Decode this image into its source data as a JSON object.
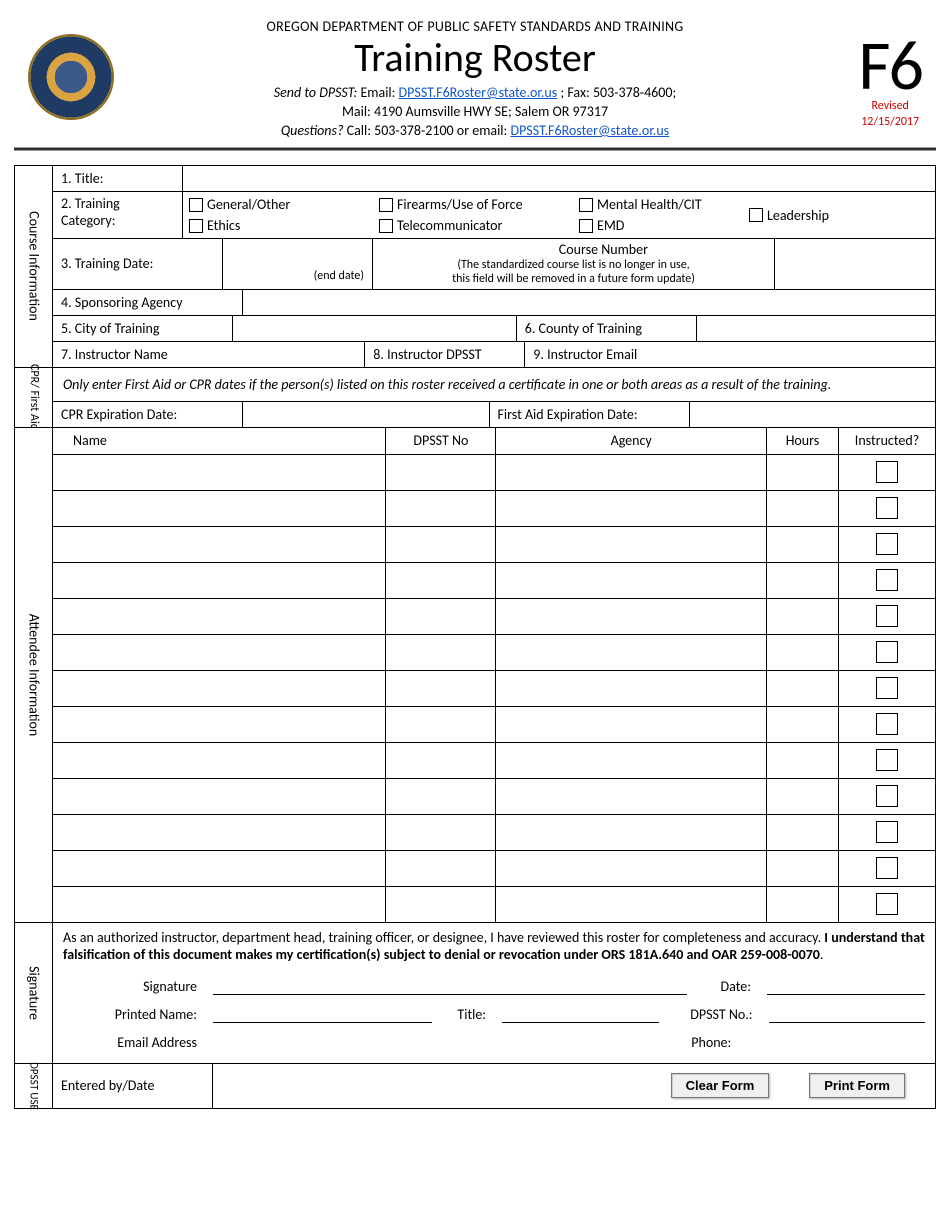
{
  "header": {
    "department": "OREGON DEPARTMENT OF PUBLIC SAFETY STANDARDS AND TRAINING",
    "title": "Training Roster",
    "send_prefix": "Send to DPSST:",
    "send_email_label": "Email:",
    "send_email": "DPSST.F6Roster@state.or.us",
    "send_fax": "; Fax: 503-378-4600;",
    "mail": "Mail: 4190 Aumsville HWY SE; Salem OR 97317",
    "questions_prefix": "Questions?",
    "questions_text": "Call: 503-378-2100 or email:",
    "questions_email": "DPSST.F6Roster@state.or.us",
    "form_code": "F6",
    "revised_label": "Revised",
    "revised_date": "12/15/2017"
  },
  "course": {
    "section_label": "Course Information",
    "title_label": "1. Title:",
    "category_label": "2.  Training Category:",
    "categories": {
      "general": "General/Other",
      "ethics": "Ethics",
      "firearms": "Firearms/Use of Force",
      "telecom": "Telecommunicator",
      "mental": "Mental Health/CIT",
      "emd": "EMD",
      "leadership": "Leadership"
    },
    "date_label": "3. Training Date:",
    "end_date_label": "(end date)",
    "course_number_label": "Course Number",
    "course_number_note1": "(The standardized course list is no longer in use,",
    "course_number_note2": "this field will be removed in a future form update)",
    "agency_label": "4. Sponsoring Agency",
    "city_label": "5. City of Training",
    "county_label": "6. County of Training",
    "instructor_name_label": "7. Instructor Name",
    "instructor_dpsst_label": "8. Instructor DPSST",
    "instructor_email_label": "9. Instructor Email"
  },
  "cpr": {
    "section_label": "CPR/ First Aid",
    "note": "Only enter First Aid or CPR dates if the person(s) listed on this roster received a certificate in one or both areas as a result of the training.",
    "cpr_label": "CPR Expiration Date:",
    "firstaid_label": "First Aid Expiration Date:"
  },
  "attendee": {
    "section_label": "Attendee Information",
    "headers": {
      "name": "Name",
      "dpsst": "DPSST No",
      "agency": "Agency",
      "hours": "Hours",
      "instructed": "Instructed?"
    },
    "row_count": 13
  },
  "sig": {
    "section_label": "Signature",
    "text_part1": "As an authorized instructor, department head, training officer, or designee, I have reviewed this roster for completeness and accuracy.  ",
    "text_bold": "I understand that falsification of this document makes my certification(s) subject to denial or revocation under ORS 181A.640 and OAR 259-008-0070",
    "text_part2": ".",
    "signature_label": "Signature",
    "date_label": "Date:",
    "printed_label": "Printed Name:",
    "title_label": "Title:",
    "dpsst_label": "DPSST No.:",
    "email_label": "Email Address",
    "phone_label": "Phone:"
  },
  "dpsst_use": {
    "section_label": "DPSST USE",
    "entered_label": "Entered by/Date",
    "clear_btn": "Clear Form",
    "print_btn": "Print Form"
  }
}
